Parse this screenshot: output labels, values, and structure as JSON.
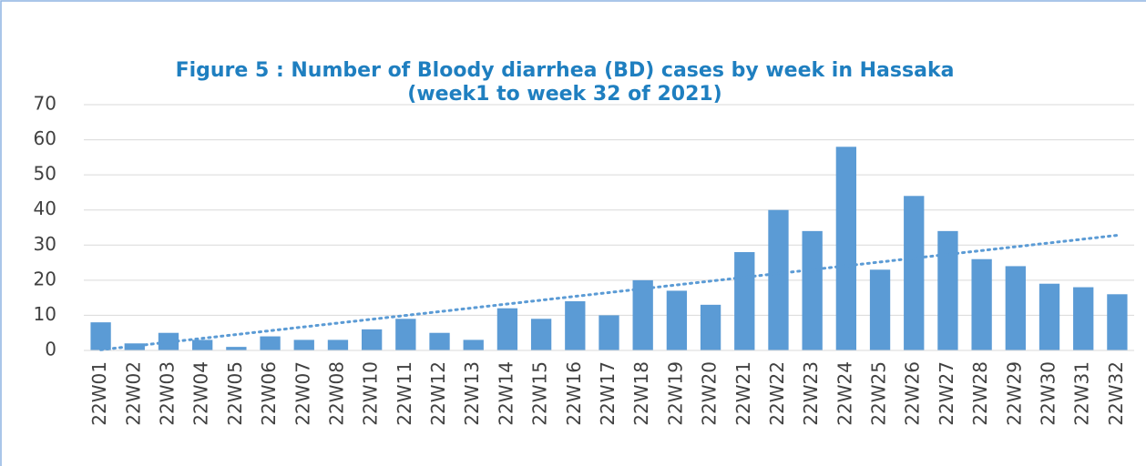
{
  "chart_data": {
    "type": "bar",
    "title": "Figure 5 : Number of Bloody diarrhea (BD) cases by week in Hassaka",
    "subtitle": "(week1 to week  32 of 2021)",
    "categories": [
      "22W01",
      "22W02",
      "22W03",
      "22W04",
      "22W05",
      "22W06",
      "22W07",
      "22W08",
      "22W10",
      "22W11",
      "22W12",
      "22W13",
      "22W14",
      "22W15",
      "22W16",
      "22W17",
      "22W18",
      "22W19",
      "22W20",
      "22W21",
      "22W22",
      "22W23",
      "22W24",
      "22W25",
      "22W26",
      "22W27",
      "22W28",
      "22W29",
      "22W30",
      "22W31",
      "22W32"
    ],
    "values": [
      8,
      2,
      5,
      3,
      1,
      4,
      3,
      3,
      6,
      9,
      5,
      3,
      12,
      9,
      14,
      10,
      20,
      17,
      13,
      28,
      40,
      34,
      58,
      23,
      44,
      34,
      26,
      24,
      19,
      18,
      16
    ],
    "color": "#5b9bd5",
    "ylim": [
      0,
      70
    ],
    "yticks": [
      0,
      10,
      20,
      30,
      40,
      50,
      60,
      70
    ],
    "grid": true,
    "trendline": "linear"
  }
}
